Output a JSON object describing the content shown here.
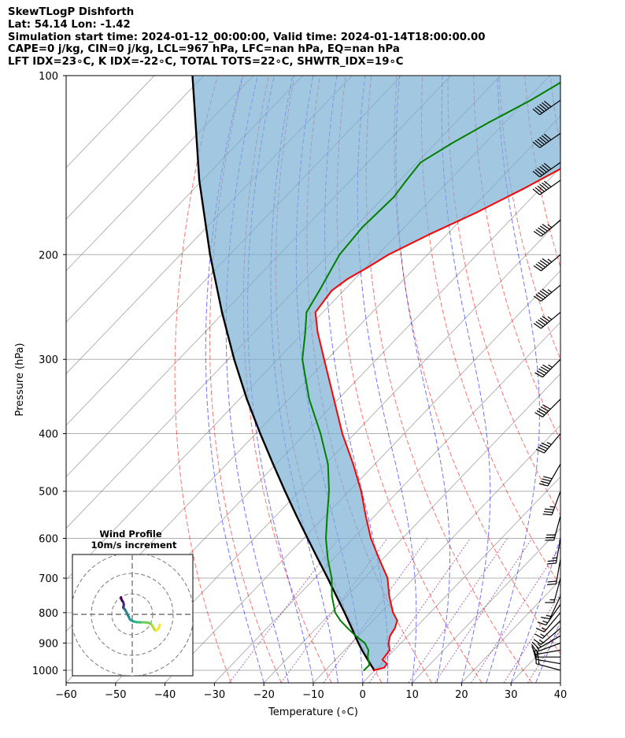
{
  "header": {
    "title": "SkewTLogP Dishforth",
    "location": "Lat: 54.14   Lon: -1.42",
    "times": "Simulation start time: 2024-01-12_00:00:00, Valid time: 2024-01-14T18:00:00.00",
    "indices1": "CAPE=0 j/kg, CIN=0 j/kg, LCL=967 hPa, LFC=nan hPa, EQ=nan hPa",
    "indices2": "LFT IDX=23∘C, K IDX=-22∘C, TOTAL TOTS=22∘C, SHWTR_IDX=19∘C"
  },
  "colors": {
    "temperature": "#ff0000",
    "dewpoint": "#008000",
    "parcel": "#000000",
    "cape_fill": "#7bafd4",
    "dry_adiabat": "#ff0000",
    "moist_adiabat": "#0000ff",
    "mixing_ratio": "#800080",
    "isotherm": "#808080"
  },
  "chart_data": {
    "type": "line",
    "chart_kind": "skew-T log-P",
    "xlabel": "Temperature (∘C)",
    "ylabel": "Pressure (hPa)",
    "xlim": [
      -60,
      40
    ],
    "ylim": [
      1050,
      100
    ],
    "x_ticks": [
      -60,
      -50,
      -40,
      -30,
      -20,
      -10,
      0,
      10,
      20,
      30,
      40
    ],
    "y_ticks": [
      1000,
      900,
      800,
      700,
      600,
      500,
      400,
      300,
      200,
      100
    ],
    "grid": true,
    "series": [
      {
        "name": "Temperature",
        "pressure": [
          1000,
          990,
          975,
          960,
          925,
          900,
          875,
          850,
          825,
          800,
          750,
          700,
          650,
          600,
          550,
          500,
          450,
          400,
          350,
          300,
          270,
          250,
          230,
          220,
          210,
          200,
          185,
          170,
          155,
          140,
          130,
          120,
          110,
          100
        ],
        "values": [
          -0.2,
          1.4,
          1.2,
          -0.5,
          -0.9,
          -2.5,
          -3.6,
          -4.1,
          -5.1,
          -7.5,
          -11.5,
          -15.3,
          -20.7,
          -26.4,
          -31.8,
          -37.5,
          -44.4,
          -52.5,
          -60.9,
          -70.6,
          -77.2,
          -81.5,
          -82.4,
          -81.5,
          -79.6,
          -77.9,
          -73.6,
          -68.3,
          -63.4,
          -58.6,
          -59.1,
          -60.2,
          -62.7,
          -66
        ]
      },
      {
        "name": "Dewpoint",
        "pressure": [
          1000,
          980,
          950,
          925,
          900,
          875,
          850,
          825,
          800,
          750,
          700,
          650,
          600,
          550,
          500,
          450,
          400,
          350,
          300,
          270,
          250,
          230,
          200,
          180,
          160,
          150,
          140,
          130,
          120,
          110,
          100
        ],
        "values": [
          -2.2,
          -2.1,
          -4.0,
          -5.2,
          -7.3,
          -10.6,
          -13.6,
          -16.6,
          -19.2,
          -23.1,
          -26.6,
          -31.1,
          -35.5,
          -39.6,
          -44,
          -49.5,
          -56.9,
          -65.9,
          -75,
          -79.7,
          -83.3,
          -84.9,
          -87.8,
          -88.5,
          -88,
          -88.7,
          -89.3,
          -86.7,
          -83.3,
          -79.1,
          -75.5
        ]
      },
      {
        "name": "Parcel",
        "pressure": [
          1000,
          967,
          925,
          900,
          850,
          800,
          750,
          700,
          650,
          600,
          550,
          500,
          450,
          400,
          350,
          300,
          250,
          200,
          150,
          100
        ],
        "values": [
          -0.1,
          -2.9,
          -6.5,
          -8.6,
          -12.8,
          -17.3,
          -22.2,
          -27.4,
          -33.1,
          -39.2,
          -45.8,
          -52.9,
          -60.6,
          -69.1,
          -78.5,
          -88.8,
          -100.4,
          -114,
          -130.6,
          -152.3
        ]
      }
    ],
    "wind_barbs": {
      "pressure": [
        1000,
        975,
        950,
        925,
        900,
        875,
        850,
        825,
        800,
        775,
        750,
        700,
        650,
        600,
        550,
        500,
        450,
        400,
        350,
        300,
        250,
        225,
        200,
        175,
        150,
        140,
        125,
        110
      ],
      "speed_kt": [
        15,
        15,
        15,
        15,
        15,
        15,
        15,
        15,
        15,
        15,
        15,
        15,
        20,
        25,
        30,
        35,
        40,
        45,
        50,
        55,
        55,
        55,
        55,
        55,
        60,
        60,
        60,
        60
      ],
      "direction_deg": [
        285,
        280,
        270,
        260,
        250,
        240,
        230,
        225,
        220,
        215,
        205,
        195,
        190,
        190,
        195,
        200,
        210,
        220,
        225,
        225,
        230,
        230,
        230,
        230,
        235,
        235,
        235,
        235
      ]
    },
    "hodograph": {
      "title": "Wind Profile",
      "subtitle": "10m/s increment",
      "ring_spacing_ms": 10,
      "u": [
        13.5,
        12.8,
        11.6,
        10.9,
        10.2,
        9.7,
        8.9,
        7.7,
        5.8,
        4.0,
        2.1,
        0.4,
        -0.8,
        -1.2,
        -1.7,
        -2.3,
        -2.9,
        -3.6,
        -4.4,
        -4.3,
        -4.4,
        -4.2,
        -4.2,
        -4.1,
        -4.4,
        -4.9,
        -5.4,
        -5.5
      ],
      "v": [
        -5.0,
        -6.9,
        -8.0,
        -7.5,
        -6.3,
        -5.4,
        -4.5,
        -4.1,
        -3.9,
        -3.9,
        -3.8,
        -3.4,
        -2.7,
        -2.4,
        -1.2,
        -0.1,
        1.2,
        2.4,
        3.2,
        3.5,
        3.6,
        3.8,
        4.2,
        4.9,
        5.9,
        6.6,
        7.6,
        8.3
      ]
    }
  }
}
